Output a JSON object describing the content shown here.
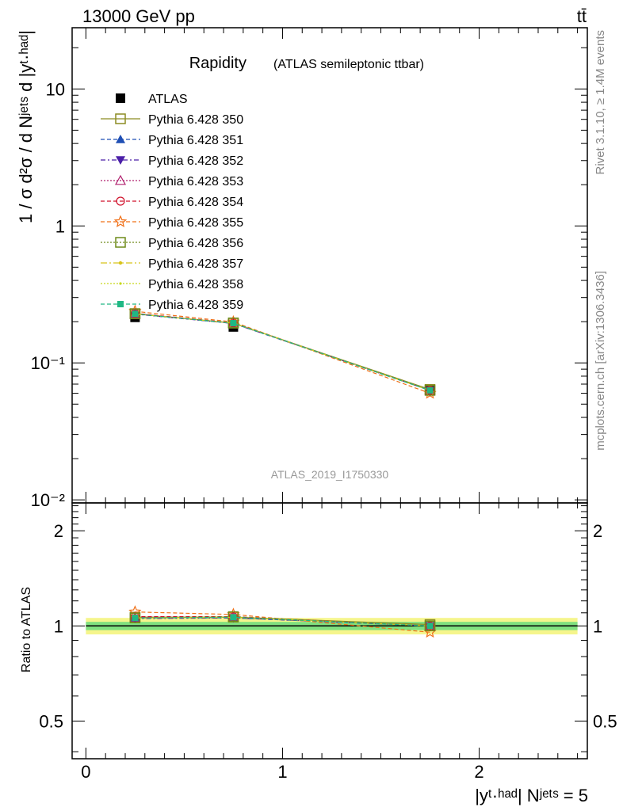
{
  "header": {
    "left": "13000 GeV pp",
    "right": "tt̄"
  },
  "side": {
    "rivet": "Rivet 3.1.10, ≥ 1.4M events",
    "mcplots": "mcplots.cern.ch [arXiv:1306.3436]"
  },
  "chart_data": [
    {
      "type": "line",
      "title": "Rapidity",
      "subtitle": "(ATLAS semileptonic ttbar)",
      "analysis_label": "ATLAS_2019_I1750330",
      "ylabel": "1 / σ d²σ / d Nʲᵉᵗˢ d |yᵗ·ʰᵃᵈ|",
      "xlabel": "|yᵗ·ʰᵃᵈ| Nʲᵉᵗˢ = 5",
      "yscale": "log",
      "xlim": [
        -0.07,
        2.55
      ],
      "ylim": [
        0.0095,
        28
      ],
      "ytick_labels": [
        "10⁻²",
        "10⁻¹",
        "1",
        "10"
      ],
      "legend_placement": "top-left",
      "x": [
        0.25,
        0.75,
        1.75
      ],
      "series": [
        {
          "name": "ATLAS",
          "values": [
            0.215,
            0.183,
            0.063
          ],
          "color": "#000000",
          "marker": "square-filled"
        },
        {
          "name": "Pythia 6.428 350",
          "values": [
            0.229,
            0.195,
            0.064
          ],
          "color": "#8c8c22",
          "marker": "square-open"
        },
        {
          "name": "Pythia 6.428 351",
          "values": [
            0.228,
            0.194,
            0.063
          ],
          "color": "#1f4fb4",
          "marker": "triangle-up-filled"
        },
        {
          "name": "Pythia 6.428 352",
          "values": [
            0.227,
            0.194,
            0.063
          ],
          "color": "#4b1fa8",
          "marker": "triangle-down-filled"
        },
        {
          "name": "Pythia 6.428 353",
          "values": [
            0.229,
            0.195,
            0.063
          ],
          "color": "#b0206e",
          "marker": "triangle-up-open"
        },
        {
          "name": "Pythia 6.428 354",
          "values": [
            0.23,
            0.196,
            0.063
          ],
          "color": "#d0102a",
          "marker": "circle-open"
        },
        {
          "name": "Pythia 6.428 355",
          "values": [
            0.238,
            0.199,
            0.06
          ],
          "color": "#f07018",
          "marker": "star-open"
        },
        {
          "name": "Pythia 6.428 356",
          "values": [
            0.228,
            0.196,
            0.063
          ],
          "color": "#6f8b1a",
          "marker": "square-open"
        },
        {
          "name": "Pythia 6.428 357",
          "values": [
            0.228,
            0.195,
            0.063
          ],
          "color": "#d8c41a",
          "marker": "dot"
        },
        {
          "name": "Pythia 6.428 358",
          "values": [
            0.228,
            0.195,
            0.063
          ],
          "color": "#c6d81a",
          "marker": "dot-small"
        },
        {
          "name": "Pythia 6.428 359",
          "values": [
            0.228,
            0.195,
            0.063
          ],
          "color": "#20b884",
          "marker": "square-filled-small"
        }
      ]
    },
    {
      "type": "line",
      "ylabel": "Ratio to ATLAS",
      "xlim": [
        -0.07,
        2.55
      ],
      "ylim": [
        0.38,
        2.45
      ],
      "yscale": "log",
      "ytick_labels": [
        "0.5",
        "1",
        "2"
      ],
      "xtick_labels": [
        "0",
        "1",
        "2"
      ],
      "band_inner": {
        "color": "#7fe07f",
        "half_width": 0.03
      },
      "band_outer": {
        "color": "#f5f58c",
        "half_width": 0.06
      },
      "x": [
        0.25,
        0.75,
        1.75
      ],
      "series": [
        {
          "name": "Pythia 6.428 350",
          "values": [
            1.066,
            1.066,
            1.01
          ],
          "color": "#8c8c22"
        },
        {
          "name": "Pythia 6.428 351",
          "values": [
            1.06,
            1.06,
            1.0
          ],
          "color": "#1f4fb4"
        },
        {
          "name": "Pythia 6.428 352",
          "values": [
            1.055,
            1.06,
            1.0
          ],
          "color": "#4b1fa8"
        },
        {
          "name": "Pythia 6.428 353",
          "values": [
            1.065,
            1.066,
            1.0
          ],
          "color": "#b0206e"
        },
        {
          "name": "Pythia 6.428 354",
          "values": [
            1.07,
            1.07,
            1.0
          ],
          "color": "#d0102a"
        },
        {
          "name": "Pythia 6.428 355",
          "values": [
            1.107,
            1.087,
            0.955
          ],
          "color": "#f07018"
        },
        {
          "name": "Pythia 6.428 356",
          "values": [
            1.06,
            1.07,
            1.0
          ],
          "color": "#6f8b1a"
        },
        {
          "name": "Pythia 6.428 357",
          "values": [
            1.06,
            1.065,
            1.0
          ],
          "color": "#d8c41a"
        },
        {
          "name": "Pythia 6.428 358",
          "values": [
            1.06,
            1.065,
            1.0
          ],
          "color": "#c6d81a"
        },
        {
          "name": "Pythia 6.428 359",
          "values": [
            1.06,
            1.065,
            1.0
          ],
          "color": "#20b884"
        }
      ]
    }
  ]
}
